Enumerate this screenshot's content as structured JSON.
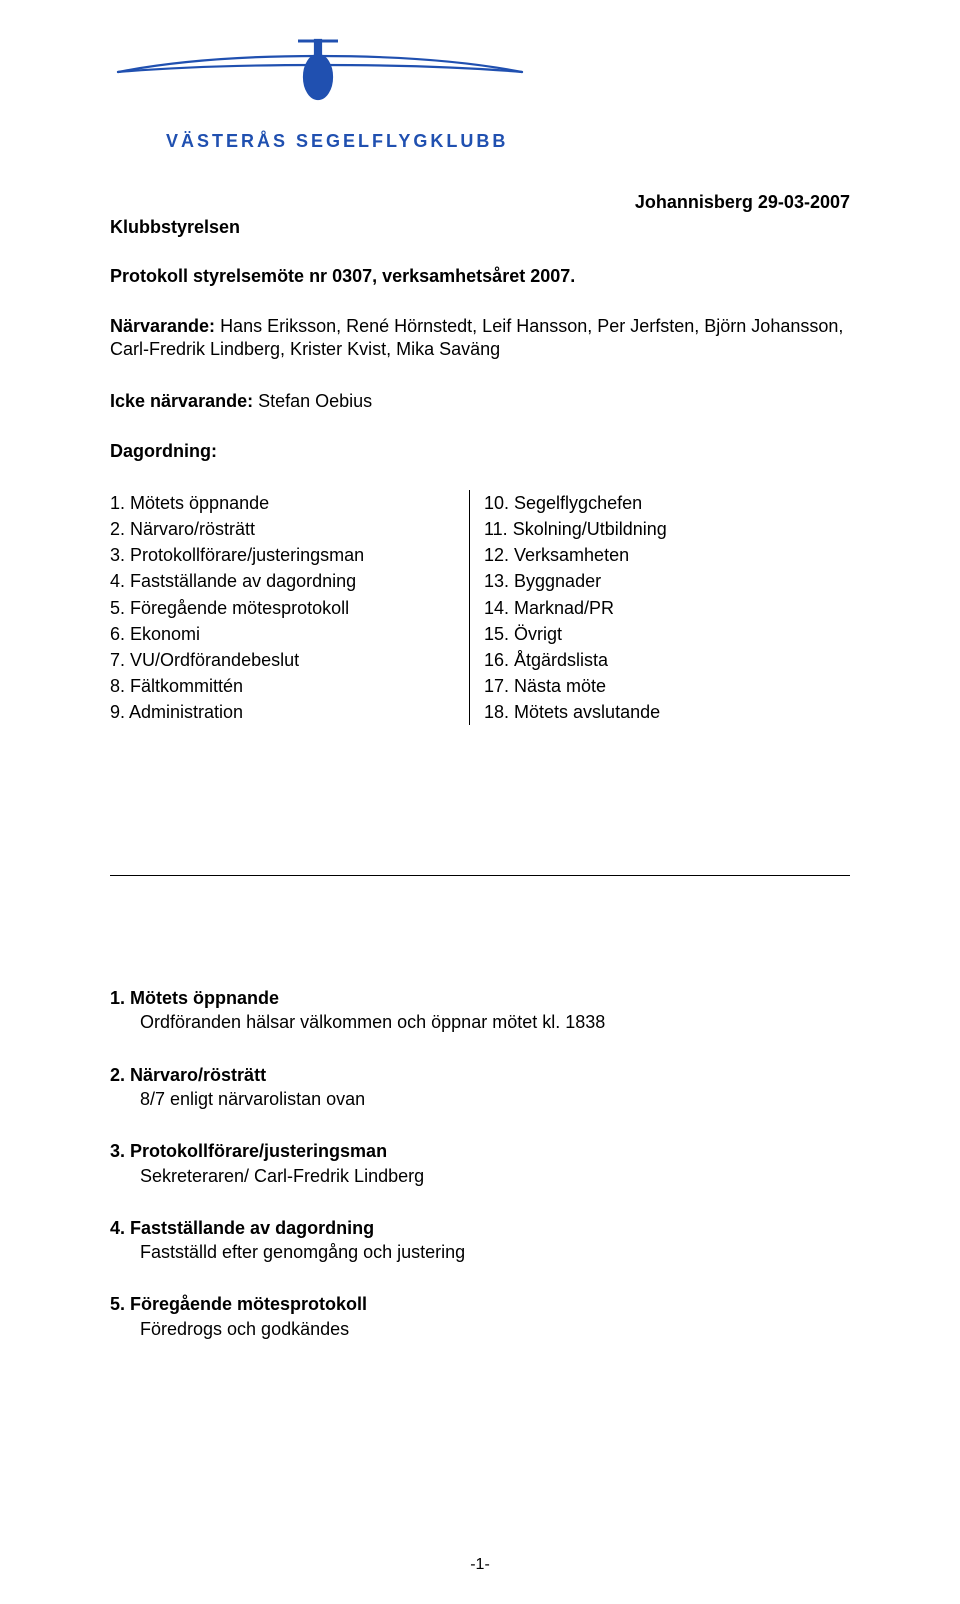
{
  "logo": {
    "stroke": "#2050b0",
    "fill": "#2050b0"
  },
  "club_name": "VÄSTERÅS SEGELFLYGKLUBB",
  "date_location": "Johannisberg 29-03-2007",
  "board": "Klubbstyrelsen",
  "protocol_title": "Protokoll styrelsemöte nr 0307, verksamhetsåret 2007.",
  "present": {
    "label": "Närvarande:",
    "value": "Hans Eriksson, René Hörnstedt, Leif Hansson, Per Jerfsten, Björn Johansson, Carl-Fredrik Lindberg, Krister Kvist, Mika Saväng"
  },
  "absent": {
    "label": "Icke närvarande:",
    "value": "Stefan Oebius"
  },
  "agenda_label": "Dagordning:",
  "agenda_left": [
    "Mötets öppnande",
    "Närvaro/rösträtt",
    "Protokollförare/justeringsman",
    "Fastställande av dagordning",
    "Föregående mötesprotokoll",
    "Ekonomi",
    "VU/Ordförandebeslut",
    "Fältkommittén",
    "Administration"
  ],
  "agenda_right": [
    "Segelflygchefen",
    "Skolning/Utbildning",
    "Verksamheten",
    "Byggnader",
    "Marknad/PR",
    "Övrigt",
    "Åtgärdslista",
    "Nästa möte",
    "Mötets avslutande"
  ],
  "body_items": [
    {
      "num": "1.",
      "title": "Mötets öppnande",
      "content": "Ordföranden hälsar välkommen och öppnar mötet kl. 1838"
    },
    {
      "num": "2.",
      "title": "Närvaro/rösträtt",
      "content": "8/7 enligt närvarolistan ovan"
    },
    {
      "num": "3.",
      "title": "Protokollförare/justeringsman",
      "content": "Sekreteraren/ Carl-Fredrik Lindberg"
    },
    {
      "num": "4.",
      "title": "Fastställande av dagordning",
      "content": "Fastställd efter genomgång och justering"
    },
    {
      "num": "5.",
      "title": "Föregående mötesprotokoll",
      "content": "Föredrogs och godkändes"
    }
  ],
  "page_number": "-1-",
  "colors": {
    "text": "#000000",
    "logo_blue": "#2050b0",
    "background": "#ffffff",
    "divider": "#000000"
  },
  "typography": {
    "body_fontsize_pt": 13,
    "heading_fontsize_pt": 13,
    "club_name_fontsize_pt": 13,
    "font_family": "Arial"
  }
}
